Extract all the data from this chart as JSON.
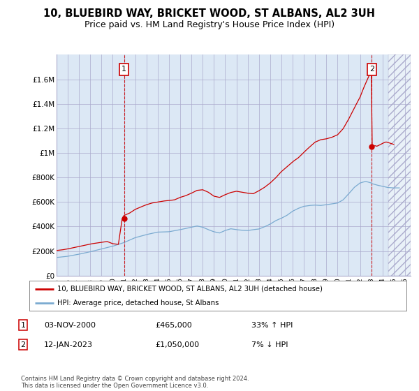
{
  "title": "10, BLUEBIRD WAY, BRICKET WOOD, ST ALBANS, AL2 3UH",
  "subtitle": "Price paid vs. HM Land Registry's House Price Index (HPI)",
  "ylim": [
    0,
    1800000
  ],
  "yticks": [
    0,
    200000,
    400000,
    600000,
    800000,
    1000000,
    1200000,
    1400000,
    1600000
  ],
  "ytick_labels": [
    "£0",
    "£200K",
    "£400K",
    "£600K",
    "£800K",
    "£1M",
    "£1.2M",
    "£1.4M",
    "£1.6M"
  ],
  "xlim_start": 1995.0,
  "xlim_end": 2026.5,
  "sale1_year": 2001.0,
  "sale1_price": 465000,
  "sale2_year": 2023.04,
  "sale2_price": 1050000,
  "sale1_label": "1",
  "sale2_label": "2",
  "sale1_date": "03-NOV-2000",
  "sale1_amount": "£465,000",
  "sale1_hpi": "33% ↑ HPI",
  "sale2_date": "12-JAN-2023",
  "sale2_amount": "£1,050,000",
  "sale2_hpi": "7% ↓ HPI",
  "house_color": "#cc0000",
  "hpi_color": "#7aaad0",
  "legend1": "10, BLUEBIRD WAY, BRICKET WOOD, ST ALBANS, AL2 3UH (detached house)",
  "legend2": "HPI: Average price, detached house, St Albans",
  "footer": "Contains HM Land Registry data © Crown copyright and database right 2024.\nThis data is licensed under the Open Government Licence v3.0.",
  "background_color": "#ffffff",
  "chart_bg_color": "#dce8f5",
  "grid_color": "#aaaacc",
  "title_fontsize": 10.5,
  "subtitle_fontsize": 9
}
